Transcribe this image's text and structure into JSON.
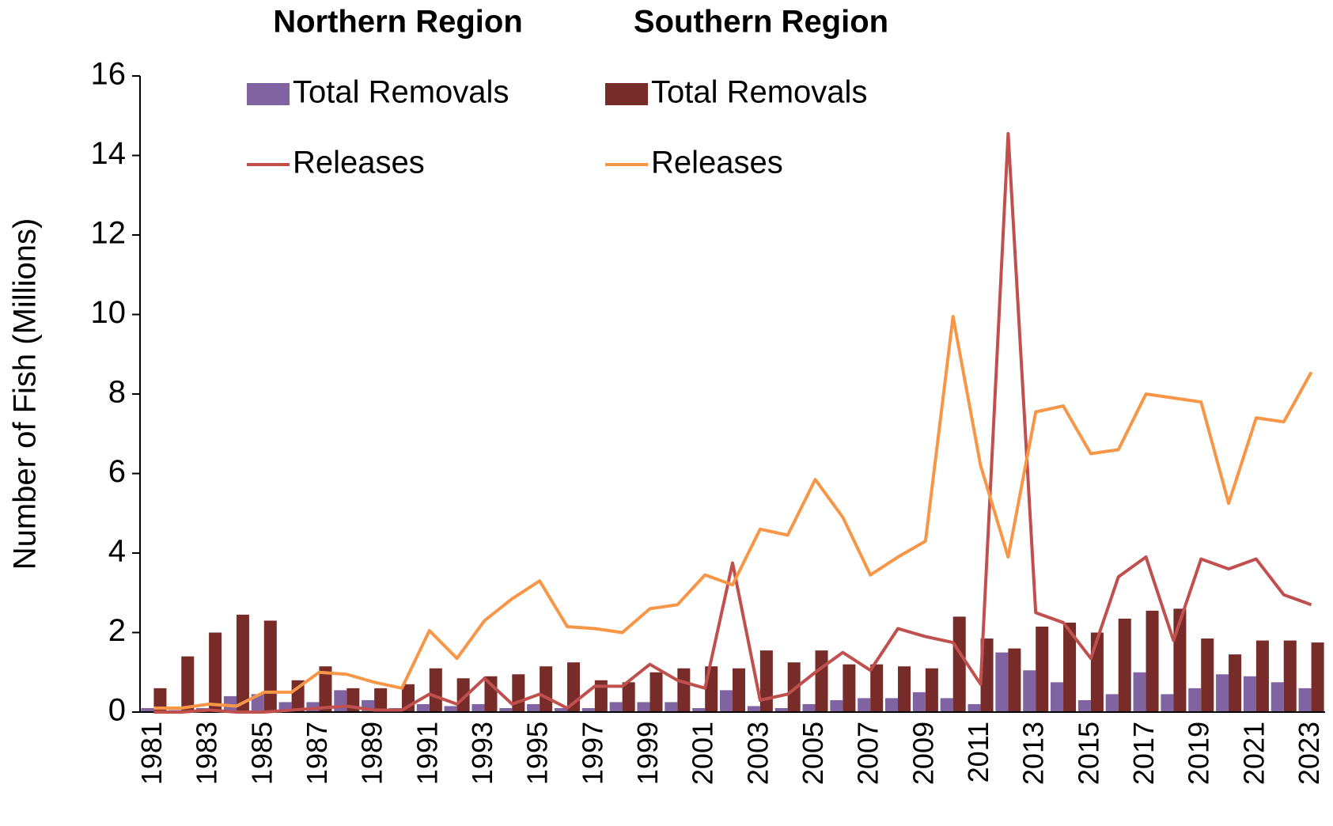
{
  "chart_data": {
    "type": "bar-line",
    "y_label": "Number of Fish (Millions)",
    "legend_columns": [
      "Northern Region",
      "Southern Region"
    ],
    "categories": [
      "1981",
      null,
      "1983",
      null,
      "1985",
      null,
      "1987",
      null,
      "1989",
      null,
      "1991",
      null,
      "1993",
      null,
      "1995",
      null,
      "1997",
      null,
      "1999",
      null,
      "2001",
      null,
      "2003",
      null,
      "2005",
      null,
      "2007",
      null,
      "2009",
      null,
      "2011",
      null,
      "2013",
      null,
      "2015",
      null,
      "2017",
      null,
      "2019",
      null,
      "2021",
      null,
      "2023"
    ],
    "series": [
      {
        "name": "Total Removals",
        "type": "bar",
        "color": "#8064a2",
        "values": [
          0.1,
          0.05,
          0.1,
          0.4,
          0.45,
          0.25,
          0.25,
          0.55,
          0.3,
          0.1,
          0.2,
          0.15,
          0.2,
          0.1,
          0.2,
          0.1,
          0.1,
          0.25,
          0.25,
          0.25,
          0.1,
          0.55,
          0.15,
          0.1,
          0.2,
          0.3,
          0.35,
          0.35,
          0.5,
          0.35,
          0.2,
          1.5,
          1.05,
          0.75,
          0.3,
          0.45,
          1.0,
          0.45,
          0.6,
          0.95,
          0.9,
          0.75,
          0.6
        ]
      },
      {
        "name": "Releases",
        "type": "line",
        "color": "#c0504d",
        "values": [
          0.0,
          0.0,
          0.05,
          0.0,
          0.0,
          0.05,
          0.1,
          0.15,
          0.05,
          0.05,
          0.45,
          0.2,
          0.85,
          0.2,
          0.45,
          0.1,
          0.65,
          0.65,
          1.2,
          0.8,
          0.6,
          3.75,
          0.3,
          0.45,
          1.0,
          1.5,
          1.05,
          2.1,
          1.9,
          1.75,
          0.7,
          14.55,
          2.5,
          2.25,
          1.35,
          3.4,
          3.9,
          1.8,
          3.85,
          3.6,
          3.85,
          2.95,
          2.7
        ]
      },
      {
        "name": "Total Removals",
        "type": "bar",
        "color": "#772c2a",
        "values": [
          0.6,
          1.4,
          2.0,
          2.45,
          2.3,
          0.8,
          1.15,
          0.6,
          0.6,
          0.7,
          1.1,
          0.85,
          0.9,
          0.95,
          1.15,
          1.25,
          0.8,
          0.75,
          1.0,
          1.1,
          1.15,
          1.1,
          1.55,
          1.25,
          1.55,
          1.2,
          1.2,
          1.15,
          1.1,
          2.4,
          1.85,
          1.6,
          2.15,
          2.25,
          2.0,
          2.35,
          2.55,
          2.6,
          1.85,
          1.45,
          1.8,
          1.8,
          1.75
        ]
      },
      {
        "name": "Releases",
        "type": "line",
        "color": "#f79646",
        "values": [
          0.1,
          0.1,
          0.2,
          0.15,
          0.5,
          0.5,
          1.0,
          0.95,
          0.75,
          0.6,
          2.05,
          1.35,
          2.3,
          2.85,
          3.3,
          2.15,
          2.1,
          2.0,
          2.6,
          2.7,
          3.45,
          3.2,
          4.6,
          4.45,
          5.85,
          4.9,
          3.45,
          3.9,
          4.3,
          9.95,
          6.2,
          3.9,
          7.55,
          7.7,
          6.5,
          6.6,
          8.0,
          7.9,
          7.8,
          5.25,
          7.4,
          7.3,
          8.55
        ]
      }
    ],
    "ylim": [
      0,
      16
    ],
    "yticks": [
      0,
      2,
      4,
      6,
      8,
      10,
      12,
      14,
      16
    ],
    "grid": false
  }
}
